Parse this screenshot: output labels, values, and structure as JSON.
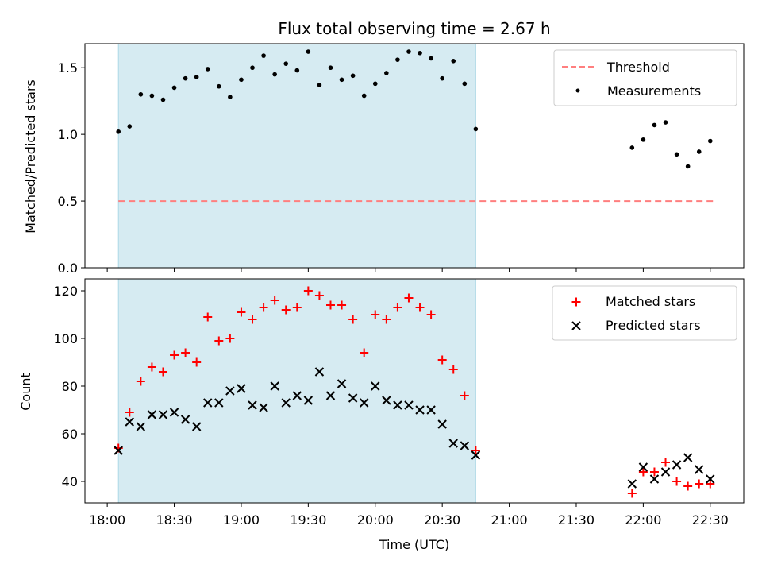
{
  "chart_data": [
    {
      "type": "scatter",
      "title": "Flux total observing time = 2.67 h",
      "ylabel": "Matched/Predicted stars",
      "xlabel": "",
      "ylim": [
        0,
        1.68
      ],
      "yticks": [
        "0.0",
        "0.5",
        "1.0",
        "1.5"
      ],
      "shaded_interval": [
        "18:05",
        "20:45"
      ],
      "shade_color": "#add8e6",
      "legend_position": "top-right",
      "series": [
        {
          "name": "Threshold",
          "style": "dashed-line",
          "color": "#ff7f7f",
          "x": [
            "18:05",
            "22:32"
          ],
          "y": [
            0.5,
            0.5
          ]
        },
        {
          "name": "Measurements",
          "style": "dot",
          "color": "#000000",
          "x": [
            "18:05",
            "18:10",
            "18:15",
            "18:20",
            "18:25",
            "18:30",
            "18:35",
            "18:40",
            "18:45",
            "18:50",
            "18:55",
            "19:00",
            "19:05",
            "19:10",
            "19:15",
            "19:20",
            "19:25",
            "19:30",
            "19:35",
            "19:40",
            "19:45",
            "19:50",
            "19:55",
            "20:00",
            "20:05",
            "20:10",
            "20:15",
            "20:20",
            "20:25",
            "20:30",
            "20:35",
            "20:40",
            "20:45",
            "21:55",
            "22:00",
            "22:05",
            "22:10",
            "22:15",
            "22:20",
            "22:25",
            "22:30"
          ],
          "y": [
            1.02,
            1.06,
            1.3,
            1.29,
            1.26,
            1.35,
            1.42,
            1.43,
            1.49,
            1.36,
            1.28,
            1.41,
            1.5,
            1.59,
            1.45,
            1.53,
            1.48,
            1.62,
            1.37,
            1.5,
            1.41,
            1.44,
            1.29,
            1.38,
            1.46,
            1.56,
            1.62,
            1.61,
            1.57,
            1.42,
            1.55,
            1.38,
            1.04,
            0.9,
            0.96,
            1.07,
            1.09,
            0.85,
            0.76,
            0.87,
            0.95
          ]
        }
      ]
    },
    {
      "type": "scatter",
      "title": "",
      "ylabel": "Count",
      "xlabel": "Time (UTC)",
      "ylim": [
        31,
        125
      ],
      "yticks": [
        "40",
        "60",
        "80",
        "100",
        "120"
      ],
      "xticks": [
        "18:00",
        "18:30",
        "19:00",
        "19:30",
        "20:00",
        "20:30",
        "21:00",
        "21:30",
        "22:00",
        "22:30"
      ],
      "shaded_interval": [
        "18:05",
        "20:45"
      ],
      "shade_color": "#add8e6",
      "legend_position": "top-right",
      "series": [
        {
          "name": "Matched stars",
          "style": "plus",
          "color": "#ff0000",
          "x": [
            "18:05",
            "18:10",
            "18:15",
            "18:20",
            "18:25",
            "18:30",
            "18:35",
            "18:40",
            "18:45",
            "18:50",
            "18:55",
            "19:00",
            "19:05",
            "19:10",
            "19:15",
            "19:20",
            "19:25",
            "19:30",
            "19:35",
            "19:40",
            "19:45",
            "19:50",
            "19:55",
            "20:00",
            "20:05",
            "20:10",
            "20:15",
            "20:20",
            "20:25",
            "20:30",
            "20:35",
            "20:40",
            "20:45",
            "21:55",
            "22:00",
            "22:05",
            "22:10",
            "22:15",
            "22:20",
            "22:25",
            "22:30"
          ],
          "y": [
            54,
            69,
            82,
            88,
            86,
            93,
            94,
            90,
            109,
            99,
            100,
            111,
            108,
            113,
            116,
            112,
            113,
            120,
            118,
            114,
            114,
            108,
            94,
            110,
            108,
            113,
            117,
            113,
            110,
            91,
            87,
            76,
            53,
            35,
            44,
            44,
            48,
            40,
            38,
            39,
            39
          ]
        },
        {
          "name": "Predicted stars",
          "style": "x",
          "color": "#000000",
          "x": [
            "18:05",
            "18:10",
            "18:15",
            "18:20",
            "18:25",
            "18:30",
            "18:35",
            "18:40",
            "18:45",
            "18:50",
            "18:55",
            "19:00",
            "19:05",
            "19:10",
            "19:15",
            "19:20",
            "19:25",
            "19:30",
            "19:35",
            "19:40",
            "19:45",
            "19:50",
            "19:55",
            "20:00",
            "20:05",
            "20:10",
            "20:15",
            "20:20",
            "20:25",
            "20:30",
            "20:35",
            "20:40",
            "20:45",
            "21:55",
            "22:00",
            "22:05",
            "22:10",
            "22:15",
            "22:20",
            "22:25",
            "22:30"
          ],
          "y": [
            53,
            65,
            63,
            68,
            68,
            69,
            66,
            63,
            73,
            73,
            78,
            79,
            72,
            71,
            80,
            73,
            76,
            74,
            86,
            76,
            81,
            75,
            73,
            80,
            74,
            72,
            72,
            70,
            70,
            64,
            56,
            55,
            51,
            39,
            46,
            41,
            44,
            47,
            50,
            45,
            41
          ]
        }
      ]
    }
  ]
}
